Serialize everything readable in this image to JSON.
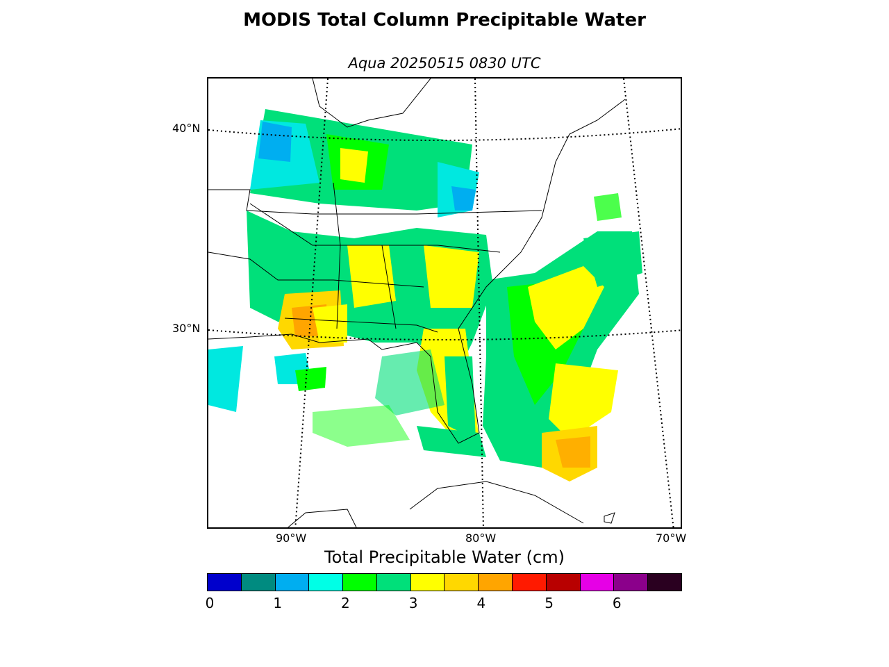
{
  "title": "MODIS Total Column Precipitable Water",
  "subtitle": "Aqua 20250515 0830 UTC",
  "map": {
    "lat_labels": [
      "40°N",
      "30°N"
    ],
    "lon_labels": [
      "90°W",
      "80°W",
      "70°W"
    ]
  },
  "colorbar": {
    "label": "Total Precipitable Water (cm)",
    "ticks": [
      "0",
      "1",
      "2",
      "3",
      "4",
      "5",
      "6"
    ],
    "colors": [
      "#0000cc",
      "#008b80",
      "#00aef0",
      "#00ffe6",
      "#00ff00",
      "#00e07a",
      "#ffff00",
      "#ffd800",
      "#ffa500",
      "#ff1a00",
      "#b80000",
      "#e600e6",
      "#8b008b",
      "#2a0020"
    ]
  },
  "chart_data": {
    "type": "heatmap",
    "title": "MODIS Total Column Precipitable Water",
    "subtitle": "Aqua 20250515 0830 UTC",
    "colorbar_label": "Total Precipitable Water (cm)",
    "colorbar_range": [
      0,
      7
    ],
    "colorbar_ticks": [
      0,
      1,
      2,
      3,
      4,
      5,
      6
    ],
    "lat_ticks": [
      "40°N",
      "30°N"
    ],
    "lon_ticks": [
      "90°W",
      "80°W",
      "70°W"
    ]
  }
}
